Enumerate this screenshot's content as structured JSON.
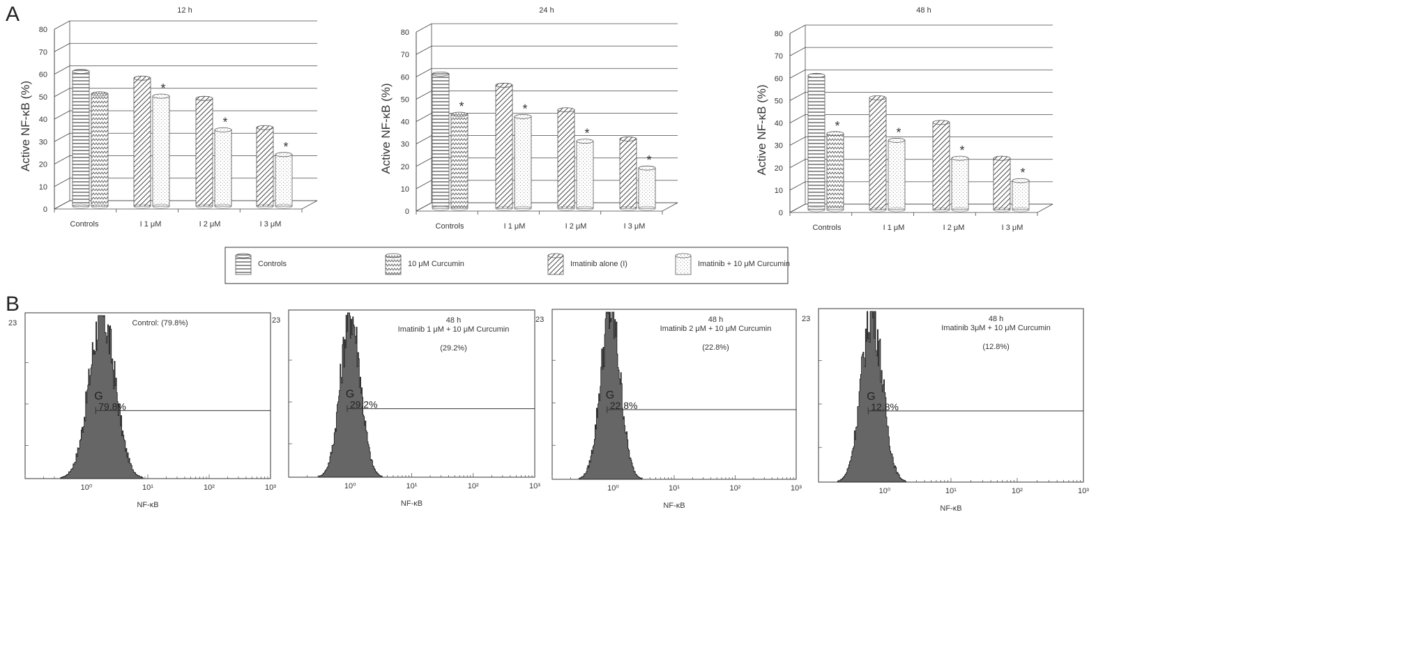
{
  "panels": {
    "a": "A",
    "b": "B"
  },
  "bar_charts": {
    "ylabel": "Active NF-κB (%)",
    "yticks": [
      "0",
      "10",
      "20",
      "30",
      "40",
      "50",
      "60",
      "70",
      "80"
    ],
    "categories": [
      "Controls",
      "I 1  μM",
      "I 2 μM",
      "I 3 μM"
    ],
    "star": "*"
  },
  "legend": {
    "items": [
      "Controls",
      "10 μM Curcumin",
      "Imatinib alone (I)",
      "Imatinib + 10 μM Curcumin"
    ]
  },
  "histograms": {
    "xlabel": "NF-κB",
    "ymax": "23",
    "gate": "G",
    "xticks": [
      "10⁰",
      "10¹",
      "10²",
      "10³"
    ],
    "panels": [
      {
        "line1": "Control: (79.8%)",
        "line2": "",
        "line3": "",
        "gate_pct": "79.8%"
      },
      {
        "line1": "48 h",
        "line2": "Imatinib 1 μM + 10 μM Curcumin",
        "line3": "(29.2%)",
        "gate_pct": "29.2%"
      },
      {
        "line1": "48 h",
        "line2": "Imatinib 2 μM + 10 μM Curcumin",
        "line3": "(22.8%)",
        "gate_pct": "22.8%"
      },
      {
        "line1": "48 h",
        "line2": "Imatinib  3μM + 10 μM Curcumin",
        "line3": "(12.8%)",
        "gate_pct": "12.8%"
      }
    ]
  },
  "chart_data": [
    {
      "type": "bar",
      "title": "12 h",
      "xlabel": "",
      "ylabel": "Active NF-κB (%)",
      "ylim": [
        0,
        80
      ],
      "categories": [
        "Controls",
        "I 1  μM",
        "I 2 μM",
        "I 3 μM"
      ],
      "series": [
        {
          "name": "Controls",
          "values": [
            60,
            null,
            null,
            null
          ]
        },
        {
          "name": "10 μM Curcumin",
          "values": [
            50,
            null,
            null,
            null
          ]
        },
        {
          "name": "Imatinib alone (I)",
          "values": [
            null,
            57,
            48,
            35
          ]
        },
        {
          "name": "Imatinib + 10 μM Curcumin",
          "values": [
            null,
            49,
            34,
            23
          ]
        }
      ],
      "significant": [
        false,
        true,
        true,
        true
      ]
    },
    {
      "type": "bar",
      "title": "24 h",
      "xlabel": "",
      "ylabel": "Active NF-κB (%)",
      "ylim": [
        0,
        80
      ],
      "categories": [
        "Controls",
        "I 1  μM",
        "I 2 μM",
        "I 3 μM"
      ],
      "series": [
        {
          "name": "Controls",
          "values": [
            60,
            null,
            null,
            null
          ]
        },
        {
          "name": "10 μM Curcumin",
          "values": [
            42,
            null,
            null,
            null
          ]
        },
        {
          "name": "Imatinib alone (I)",
          "values": [
            null,
            55,
            44,
            31
          ]
        },
        {
          "name": "Imatinib + 10 μM Curcumin",
          "values": [
            null,
            41,
            30,
            18
          ]
        }
      ],
      "significant": [
        true,
        true,
        true,
        true
      ]
    },
    {
      "type": "bar",
      "title": "48 h",
      "xlabel": "",
      "ylabel": "Active NF-κB (%)",
      "ylim": [
        0,
        80
      ],
      "categories": [
        "Controls",
        "I 1  μM",
        "I 2 μM",
        "I 3 μM"
      ],
      "series": [
        {
          "name": "Controls",
          "values": [
            60,
            null,
            null,
            null
          ]
        },
        {
          "name": "10 μM Curcumin",
          "values": [
            34,
            null,
            null,
            null
          ]
        },
        {
          "name": "Imatinib alone (I)",
          "values": [
            null,
            50,
            39,
            23
          ]
        },
        {
          "name": "Imatinib + 10 μM Curcumin",
          "values": [
            null,
            31,
            23,
            13
          ]
        }
      ],
      "significant": [
        true,
        true,
        true,
        true
      ]
    }
  ],
  "histogram_data": [
    {
      "gate_percent": 79.8,
      "peak_log10": 0.25
    },
    {
      "gate_percent": 29.2,
      "peak_log10": 0.0
    },
    {
      "gate_percent": 22.8,
      "peak_log10": -0.05
    },
    {
      "gate_percent": 12.8,
      "peak_log10": -0.2
    }
  ]
}
